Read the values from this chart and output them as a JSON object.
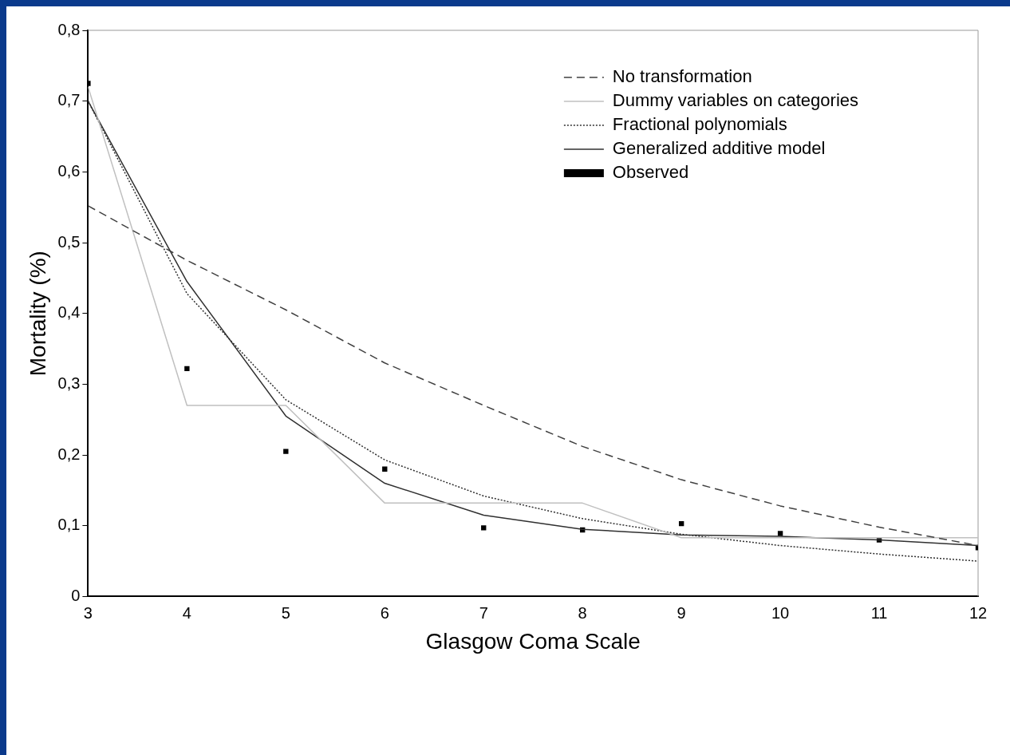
{
  "chart_data": {
    "type": "line",
    "xlabel": "Glasgow Coma Scale",
    "ylabel": "Mortality (%)",
    "x": [
      3,
      4,
      5,
      6,
      7,
      8,
      9,
      10,
      11,
      12
    ],
    "xlim": [
      3,
      12
    ],
    "xticks": [
      3,
      4,
      5,
      6,
      7,
      8,
      9,
      10,
      11,
      12
    ],
    "ylim": [
      0,
      0.8
    ],
    "yticks": [
      0,
      {
        "value": 0.1,
        "label": "0,1"
      },
      {
        "value": 0.2,
        "label": "0,2"
      },
      {
        "value": 0.3,
        "label": "0,3"
      },
      {
        "value": 0.4,
        "label": "0,4"
      },
      {
        "value": 0.5,
        "label": "0,5"
      },
      {
        "value": 0.6,
        "label": "0,6"
      },
      {
        "value": 0.7,
        "label": "0,7"
      },
      {
        "value": 0.8,
        "label": "0,8"
      }
    ],
    "grid": false,
    "legend": "top right",
    "series": [
      {
        "name": "No transformation",
        "type": "line",
        "color": "#404040",
        "line_style": "dashed",
        "marker": "none",
        "values": [
          0.552,
          0.475,
          0.405,
          0.33,
          0.27,
          0.212,
          0.165,
          0.128,
          0.098,
          0.072
        ]
      },
      {
        "name": "Dummy variables on categories",
        "type": "line",
        "color": "#c0c0c0",
        "line_style": "solid",
        "marker": "none",
        "values": [
          0.72,
          0.27,
          0.27,
          0.132,
          0.132,
          0.132,
          0.083,
          0.083,
          0.083,
          0.083
        ]
      },
      {
        "name": "Fractional polynomials",
        "type": "line",
        "color": "#303030",
        "line_style": "dotted",
        "marker": "none",
        "values": [
          0.7,
          0.428,
          0.278,
          0.193,
          0.142,
          0.11,
          0.088,
          0.072,
          0.06,
          0.05
        ]
      },
      {
        "name": "Generalized additive model",
        "type": "line",
        "color": "#303030",
        "line_style": "solid",
        "marker": "none",
        "values": [
          0.7,
          0.445,
          0.255,
          0.16,
          0.115,
          0.095,
          0.087,
          0.085,
          0.08,
          0.072
        ]
      },
      {
        "name": "Observed",
        "type": "scatter",
        "color": "#000000",
        "marker": "square",
        "values": [
          0.725,
          0.322,
          0.205,
          0.18,
          0.097,
          0.094,
          0.103,
          0.089,
          0.08,
          0.069
        ]
      }
    ]
  }
}
